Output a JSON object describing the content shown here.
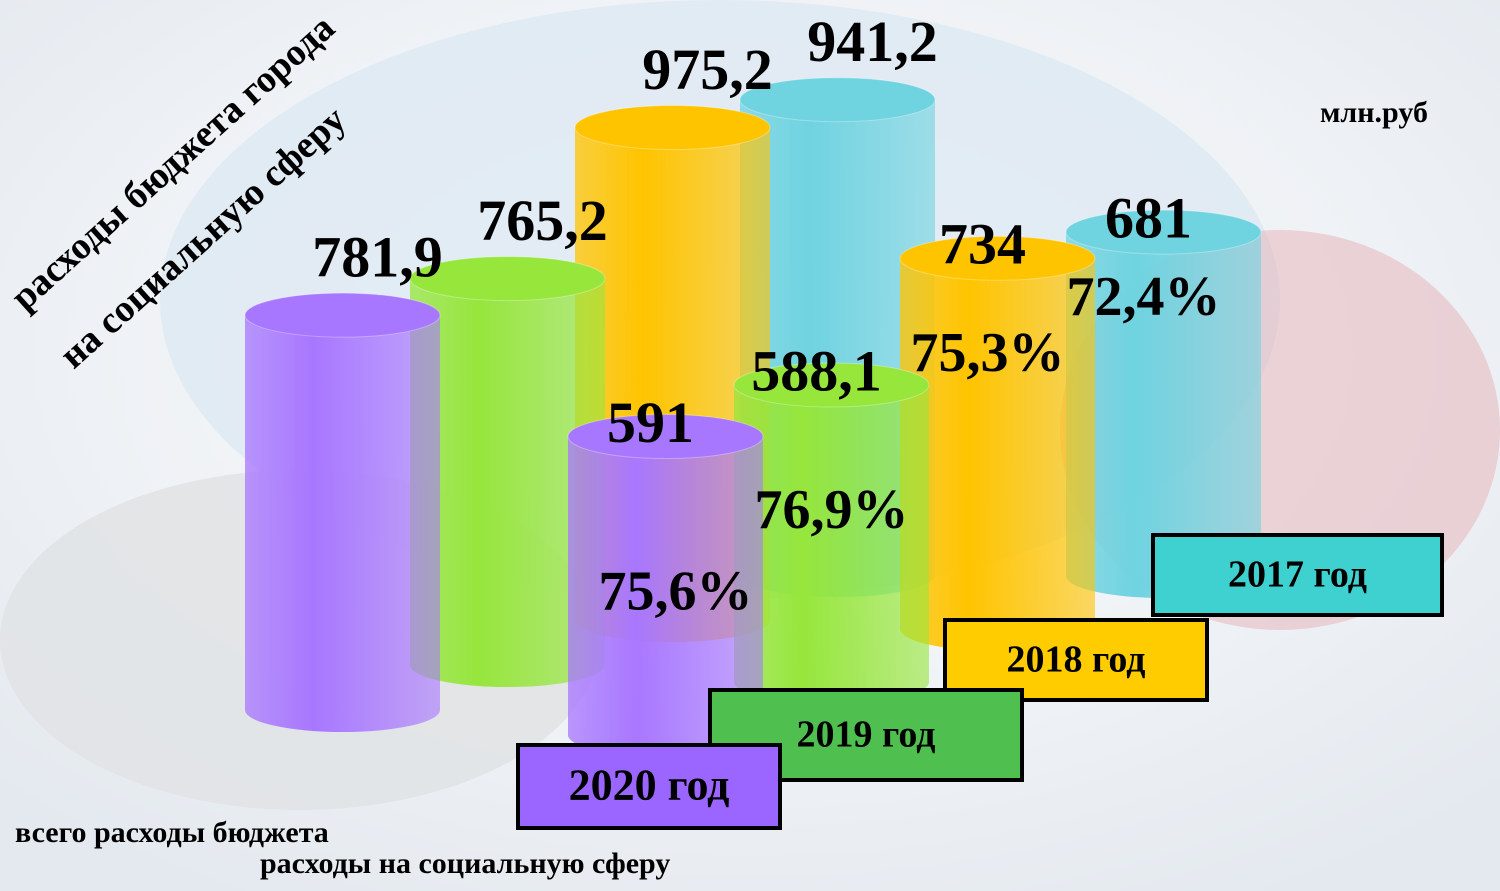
{
  "chart_data": {
    "type": "cylinder",
    "title": "расходы бюджета города",
    "subtitle": "на социальную сферу",
    "unit": "млн.руб",
    "categories": [
      "2020 год",
      "2019 год",
      "2018 год",
      "2017 год"
    ],
    "colors": [
      "#a877ff",
      "#96e63c",
      "#ffc400",
      "#6fd3e0"
    ],
    "box_colors": [
      "#9b66ff",
      "#4fc04f",
      "#ffcc00",
      "#3fd0d0"
    ],
    "series": [
      {
        "name": "всего расходы бюджета",
        "values": [
          781.9,
          765.2,
          975.2,
          941.2
        ],
        "value_labels": [
          "781,9",
          "765,2",
          "975,2",
          "941,2"
        ]
      },
      {
        "name": "расходы на социальную сферу",
        "values": [
          591,
          588.1,
          734,
          681
        ],
        "value_labels": [
          "591",
          "588,1",
          "734",
          "681"
        ]
      }
    ],
    "shares": {
      "values": [
        75.6,
        76.9,
        75.3,
        72.4
      ],
      "value_labels": [
        "75,6%",
        "76,9%",
        "75,3%",
        "72,4%"
      ]
    }
  }
}
